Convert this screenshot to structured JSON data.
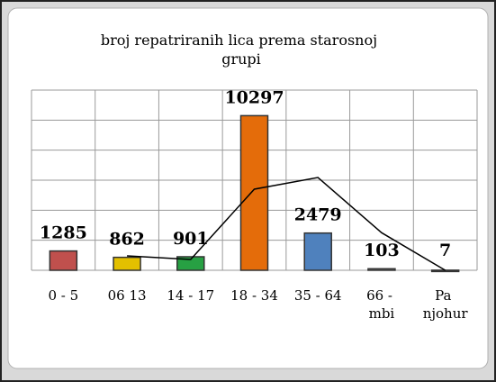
{
  "chart_data": {
    "type": "bar",
    "title": "broj repatriranih lica prema starosnoj grupi",
    "categories": [
      "0 - 5",
      "06  13",
      "14 - 17",
      "18 - 34",
      "35 - 64",
      "66 - mbi",
      "Pa njohur"
    ],
    "series": [
      {
        "type": "bar",
        "colors": [
          "#c0504d",
          "#e3c000",
          "#27a043",
          "#e46c0a",
          "#4f81bd",
          "#8c8c8c",
          "#8c8c8c"
        ],
        "values": [
          1285,
          862,
          901,
          10297,
          2479,
          103,
          7
        ]
      },
      {
        "type": "line",
        "color": "#000000",
        "values": [
          null,
          960,
          720,
          5400,
          6180,
          2500,
          0
        ]
      }
    ],
    "ylim": [
      0,
      12000
    ],
    "yticks": [
      0,
      2000,
      4000,
      6000,
      8000,
      10000,
      12000
    ],
    "grid": true
  }
}
